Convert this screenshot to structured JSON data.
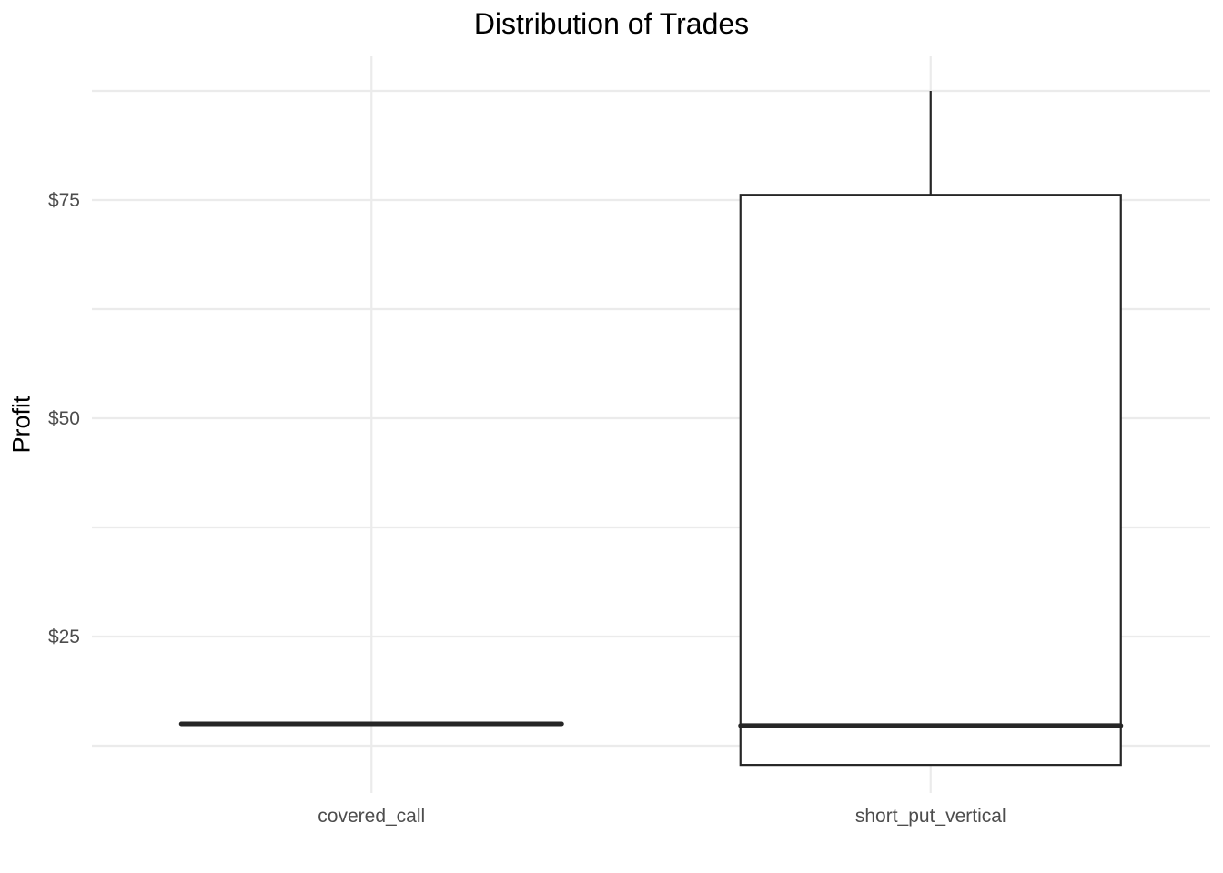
{
  "chart_data": {
    "type": "boxplot",
    "title": "Distribution of Trades",
    "xlabel": "",
    "ylabel": "Profit",
    "categories": [
      "covered_call",
      "short_put_vertical"
    ],
    "boxes": [
      {
        "category": "covered_call",
        "min": 15,
        "q1": 15,
        "median": 15,
        "q3": 15,
        "max": 15
      },
      {
        "category": "short_put_vertical",
        "min": 10.3,
        "q1": 10.3,
        "median": 14.8,
        "q3": 75.6,
        "max": 87.5
      }
    ],
    "y_ticks": [
      25,
      50,
      75
    ],
    "y_tick_labels": [
      "$25",
      "$50",
      "$75"
    ],
    "ylim": [
      8.5,
      90.6
    ],
    "grid": true,
    "legend": "none",
    "colors": {
      "box_stroke": "#262626",
      "grid": "#ebebeb",
      "tick_text": "#4d4d4d"
    }
  }
}
